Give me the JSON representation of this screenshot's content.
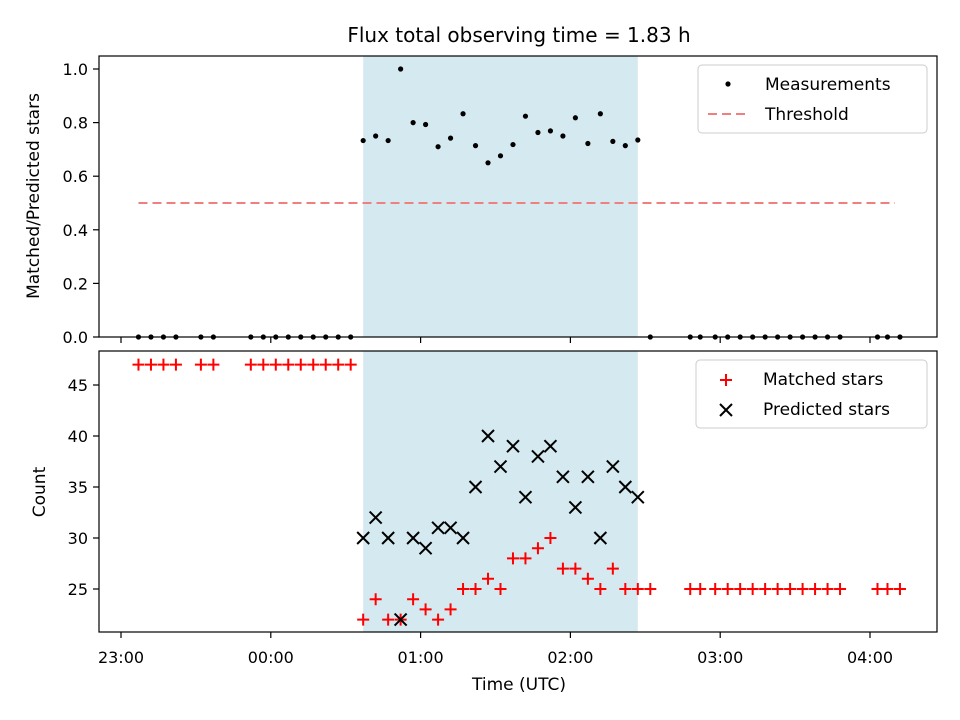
{
  "chart_data": [
    {
      "type": "scatter",
      "title": "Flux total observing time = 1.83 h",
      "xlabel": "",
      "ylabel": "Matched/Predicted stars",
      "ylim": [
        0,
        1.05
      ],
      "yticks": [
        "0.0",
        "0.2",
        "0.4",
        "0.6",
        "0.8",
        "1.0"
      ],
      "ytick_values": [
        0,
        0.2,
        0.4,
        0.6,
        0.8,
        1.0
      ],
      "shaded_region": {
        "x_start": "00:37",
        "x_end": "02:27",
        "color": "#d4eaf0"
      },
      "legend": {
        "position": "top-right",
        "entries": [
          "Measurements",
          "Threshold"
        ]
      },
      "threshold": {
        "name": "Threshold",
        "y": 0.5,
        "x_start": "23:07",
        "x_end": "04:10",
        "color": "#f08080"
      },
      "series": [
        {
          "name": "Measurements",
          "color": "#000000",
          "points": [
            [
              "23:07",
              0
            ],
            [
              "23:12",
              0
            ],
            [
              "23:17",
              0
            ],
            [
              "23:22",
              0
            ],
            [
              "23:32",
              0
            ],
            [
              "23:37",
              0
            ],
            [
              "23:52",
              0
            ],
            [
              "23:57",
              0
            ],
            [
              "00:02",
              0
            ],
            [
              "00:07",
              0
            ],
            [
              "00:12",
              0
            ],
            [
              "00:17",
              0
            ],
            [
              "00:22",
              0
            ],
            [
              "00:27",
              0
            ],
            [
              "00:32",
              0
            ],
            [
              "00:37",
              0.733
            ],
            [
              "00:42",
              0.75
            ],
            [
              "00:47",
              0.733
            ],
            [
              "00:52",
              1.0
            ],
            [
              "00:57",
              0.8
            ],
            [
              "01:02",
              0.793
            ],
            [
              "01:07",
              0.71
            ],
            [
              "01:12",
              0.742
            ],
            [
              "01:17",
              0.833
            ],
            [
              "01:22",
              0.714
            ],
            [
              "01:27",
              0.65
            ],
            [
              "01:32",
              0.676
            ],
            [
              "01:37",
              0.718
            ],
            [
              "01:42",
              0.824
            ],
            [
              "01:47",
              0.763
            ],
            [
              "01:52",
              0.769
            ],
            [
              "01:57",
              0.75
            ],
            [
              "02:02",
              0.818
            ],
            [
              "02:07",
              0.722
            ],
            [
              "02:12",
              0.833
            ],
            [
              "02:17",
              0.73
            ],
            [
              "02:22",
              0.714
            ],
            [
              "02:27",
              0.735
            ],
            [
              "02:32",
              0
            ],
            [
              "02:48",
              0
            ],
            [
              "02:52",
              0
            ],
            [
              "02:58",
              0
            ],
            [
              "03:03",
              0
            ],
            [
              "03:08",
              0
            ],
            [
              "03:13",
              0
            ],
            [
              "03:18",
              0
            ],
            [
              "03:23",
              0
            ],
            [
              "03:28",
              0
            ],
            [
              "03:33",
              0
            ],
            [
              "03:38",
              0
            ],
            [
              "03:43",
              0
            ],
            [
              "03:48",
              0
            ],
            [
              "04:03",
              0
            ],
            [
              "04:07",
              0
            ],
            [
              "04:12",
              0
            ]
          ]
        }
      ]
    },
    {
      "type": "scatter",
      "title": "",
      "xlabel": "Time (UTC)",
      "ylabel": "Count",
      "ylim": [
        20.5,
        48.5
      ],
      "yticks": [
        "25",
        "30",
        "35",
        "40",
        "45"
      ],
      "ytick_values": [
        25,
        30,
        35,
        40,
        45
      ],
      "xticks": [
        "23:00",
        "00:00",
        "01:00",
        "02:00",
        "03:00",
        "04:00"
      ],
      "shaded_region": {
        "x_start": "00:37",
        "x_end": "02:27",
        "color": "#d4eaf0"
      },
      "legend": {
        "position": "top-right",
        "entries": [
          "Matched stars",
          "Predicted stars"
        ]
      },
      "series": [
        {
          "name": "Matched stars",
          "color": "#ff0000",
          "marker": "plus",
          "points": [
            [
              "23:07",
              47
            ],
            [
              "23:12",
              47
            ],
            [
              "23:17",
              47
            ],
            [
              "23:22",
              47
            ],
            [
              "23:32",
              47
            ],
            [
              "23:37",
              47
            ],
            [
              "23:52",
              47
            ],
            [
              "23:57",
              47
            ],
            [
              "00:02",
              47
            ],
            [
              "00:07",
              47
            ],
            [
              "00:12",
              47
            ],
            [
              "00:17",
              47
            ],
            [
              "00:22",
              47
            ],
            [
              "00:27",
              47
            ],
            [
              "00:32",
              47
            ],
            [
              "00:37",
              22
            ],
            [
              "00:42",
              24
            ],
            [
              "00:47",
              22
            ],
            [
              "00:52",
              22
            ],
            [
              "00:57",
              24
            ],
            [
              "01:02",
              23
            ],
            [
              "01:07",
              22
            ],
            [
              "01:12",
              23
            ],
            [
              "01:17",
              25
            ],
            [
              "01:22",
              25
            ],
            [
              "01:27",
              26
            ],
            [
              "01:32",
              25
            ],
            [
              "01:37",
              28
            ],
            [
              "01:42",
              28
            ],
            [
              "01:47",
              29
            ],
            [
              "01:52",
              30
            ],
            [
              "01:57",
              27
            ],
            [
              "02:02",
              27
            ],
            [
              "02:07",
              26
            ],
            [
              "02:12",
              25
            ],
            [
              "02:17",
              27
            ],
            [
              "02:22",
              25
            ],
            [
              "02:27",
              25
            ],
            [
              "02:32",
              25
            ],
            [
              "02:48",
              25
            ],
            [
              "02:52",
              25
            ],
            [
              "02:58",
              25
            ],
            [
              "03:03",
              25
            ],
            [
              "03:08",
              25
            ],
            [
              "03:13",
              25
            ],
            [
              "03:18",
              25
            ],
            [
              "03:23",
              25
            ],
            [
              "03:28",
              25
            ],
            [
              "03:33",
              25
            ],
            [
              "03:38",
              25
            ],
            [
              "03:43",
              25
            ],
            [
              "03:48",
              25
            ],
            [
              "04:03",
              25
            ],
            [
              "04:07",
              25
            ],
            [
              "04:12",
              25
            ]
          ]
        },
        {
          "name": "Predicted stars",
          "color": "#000000",
          "marker": "x",
          "points": [
            [
              "00:37",
              30
            ],
            [
              "00:42",
              32
            ],
            [
              "00:47",
              30
            ],
            [
              "00:52",
              22
            ],
            [
              "00:57",
              30
            ],
            [
              "01:02",
              29
            ],
            [
              "01:07",
              31
            ],
            [
              "01:12",
              31
            ],
            [
              "01:17",
              30
            ],
            [
              "01:22",
              35
            ],
            [
              "01:27",
              40
            ],
            [
              "01:32",
              37
            ],
            [
              "01:37",
              39
            ],
            [
              "01:42",
              34
            ],
            [
              "01:47",
              38
            ],
            [
              "01:52",
              39
            ],
            [
              "01:57",
              36
            ],
            [
              "02:02",
              33
            ],
            [
              "02:07",
              36
            ],
            [
              "02:12",
              30
            ],
            [
              "02:17",
              37
            ],
            [
              "02:22",
              35
            ],
            [
              "02:27",
              34
            ]
          ]
        }
      ]
    }
  ]
}
